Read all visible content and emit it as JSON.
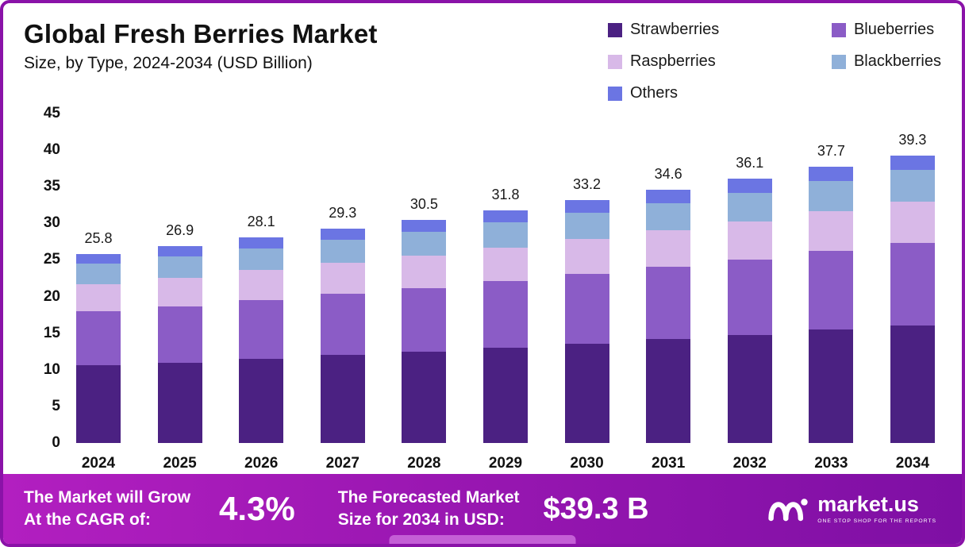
{
  "title": "Global Fresh Berries Market",
  "subtitle": "Size, by Type, 2024-2034 (USD Billion)",
  "chart_data": {
    "type": "bar",
    "stacked": true,
    "title": "Global Fresh Berries Market Size, by Type, 2024-2034 (USD Billion)",
    "categories": [
      "2024",
      "2025",
      "2026",
      "2027",
      "2028",
      "2029",
      "2030",
      "2031",
      "2032",
      "2033",
      "2034"
    ],
    "series": [
      {
        "name": "Strawberries",
        "color": "#4b2182",
        "values": [
          10.6,
          11.0,
          11.5,
          12.0,
          12.5,
          13.0,
          13.6,
          14.2,
          14.8,
          15.5,
          16.1
        ]
      },
      {
        "name": "Blueberries",
        "color": "#8b5cc6",
        "values": [
          7.4,
          7.7,
          8.0,
          8.4,
          8.7,
          9.1,
          9.5,
          9.9,
          10.3,
          10.7,
          11.2
        ]
      },
      {
        "name": "Raspberries",
        "color": "#d8b9e8",
        "values": [
          3.7,
          3.9,
          4.1,
          4.2,
          4.4,
          4.6,
          4.8,
          5.0,
          5.2,
          5.5,
          5.7
        ]
      },
      {
        "name": "Blackberries",
        "color": "#8fb0d9",
        "values": [
          2.8,
          2.9,
          3.0,
          3.2,
          3.3,
          3.4,
          3.6,
          3.7,
          3.9,
          4.1,
          4.3
        ]
      },
      {
        "name": "Others",
        "color": "#6b75e3",
        "values": [
          1.3,
          1.4,
          1.5,
          1.5,
          1.6,
          1.7,
          1.7,
          1.8,
          1.9,
          1.9,
          2.0
        ]
      }
    ],
    "totals": [
      25.8,
      26.9,
      28.1,
      29.3,
      30.5,
      31.8,
      33.2,
      34.6,
      36.1,
      37.7,
      39.3
    ],
    "ylim": [
      0,
      45
    ],
    "yticks": [
      45,
      40,
      35,
      30,
      25,
      20,
      15,
      10,
      5,
      0
    ],
    "grid": false,
    "legend_position": "top-right"
  },
  "footer": {
    "cagr_label_line1": "The Market will Grow",
    "cagr_label_line2": "At the CAGR of:",
    "cagr_value": "4.3%",
    "forecast_label_line1": "The Forecasted Market",
    "forecast_label_line2": "Size for 2034 in USD:",
    "forecast_value": "$39.3 B",
    "brand": "market.us",
    "brand_tagline": "ONE STOP SHOP FOR THE REPORTS"
  },
  "colors": {
    "banner_left": "#b21fc0",
    "banner_right": "#7e0fa4",
    "frame": "#8a12a8",
    "handle": "#c45fd6"
  }
}
